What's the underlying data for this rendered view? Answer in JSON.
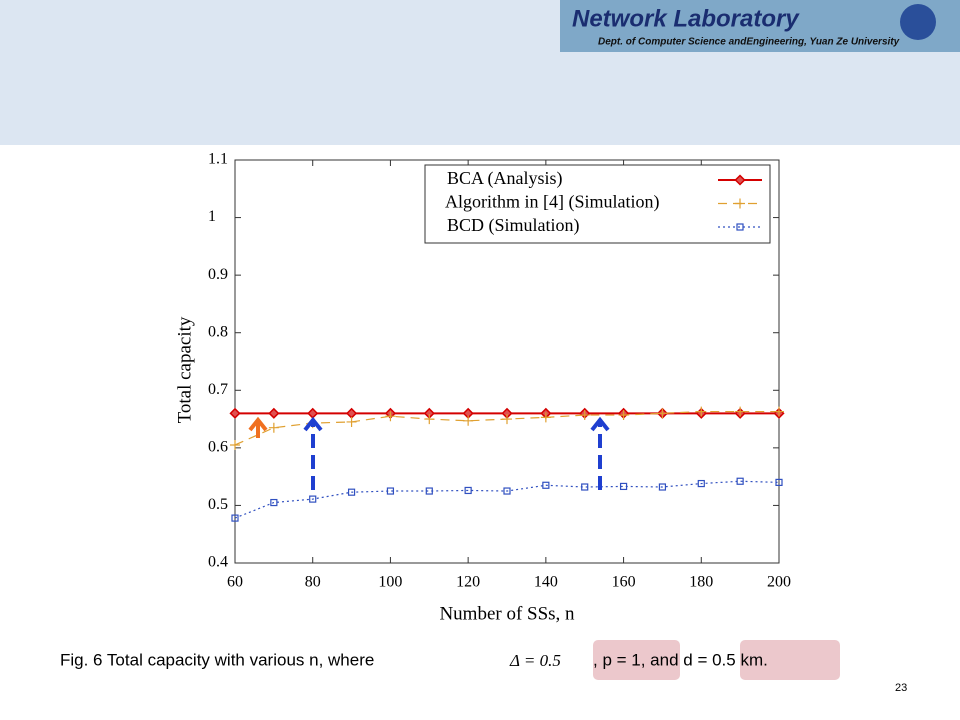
{
  "header": {
    "logo_title": "Network Laboratory",
    "logo_subtitle": "Dept. of Computer Science andEngineering, Yuan Ze University"
  },
  "chart_data": {
    "type": "line",
    "x_label": "Number of SSs, n",
    "y_label": "Total capacity",
    "x": [
      60,
      70,
      80,
      90,
      100,
      110,
      120,
      130,
      140,
      150,
      160,
      170,
      180,
      190,
      200
    ],
    "xlim": [
      60,
      200
    ],
    "xticks": [
      60,
      80,
      100,
      120,
      140,
      160,
      180,
      200
    ],
    "ylim": [
      0.4,
      1.1
    ],
    "yticks": [
      0.4,
      0.5,
      0.6,
      0.7,
      0.8,
      0.9,
      1,
      1.1
    ],
    "series": [
      {
        "name": "BCA (Analysis)",
        "color": "#d40000",
        "marker": "diamond",
        "dash": "solid",
        "values": [
          0.66,
          0.66,
          0.66,
          0.66,
          0.66,
          0.66,
          0.66,
          0.66,
          0.66,
          0.66,
          0.66,
          0.66,
          0.66,
          0.66,
          0.66
        ]
      },
      {
        "name": "Algorithm in [4] (Simulation)",
        "color": "#e0a030",
        "marker": "plus",
        "dash": "dashed",
        "values": [
          0.605,
          0.635,
          0.643,
          0.645,
          0.655,
          0.65,
          0.647,
          0.65,
          0.653,
          0.657,
          0.657,
          0.66,
          0.663,
          0.663,
          0.663
        ]
      },
      {
        "name": "BCD (Simulation)",
        "color": "#3050c0",
        "marker": "square",
        "dash": "dotted",
        "values": [
          0.478,
          0.505,
          0.511,
          0.523,
          0.525,
          0.525,
          0.526,
          0.525,
          0.535,
          0.532,
          0.533,
          0.532,
          0.538,
          0.542,
          0.54
        ]
      }
    ]
  },
  "caption": {
    "text": "Fig. 6 Total capacity with various n, where",
    "math": "Δ = 0.5",
    "rest": ", p = 1, and d = 0.5 km."
  },
  "page_number": "23"
}
